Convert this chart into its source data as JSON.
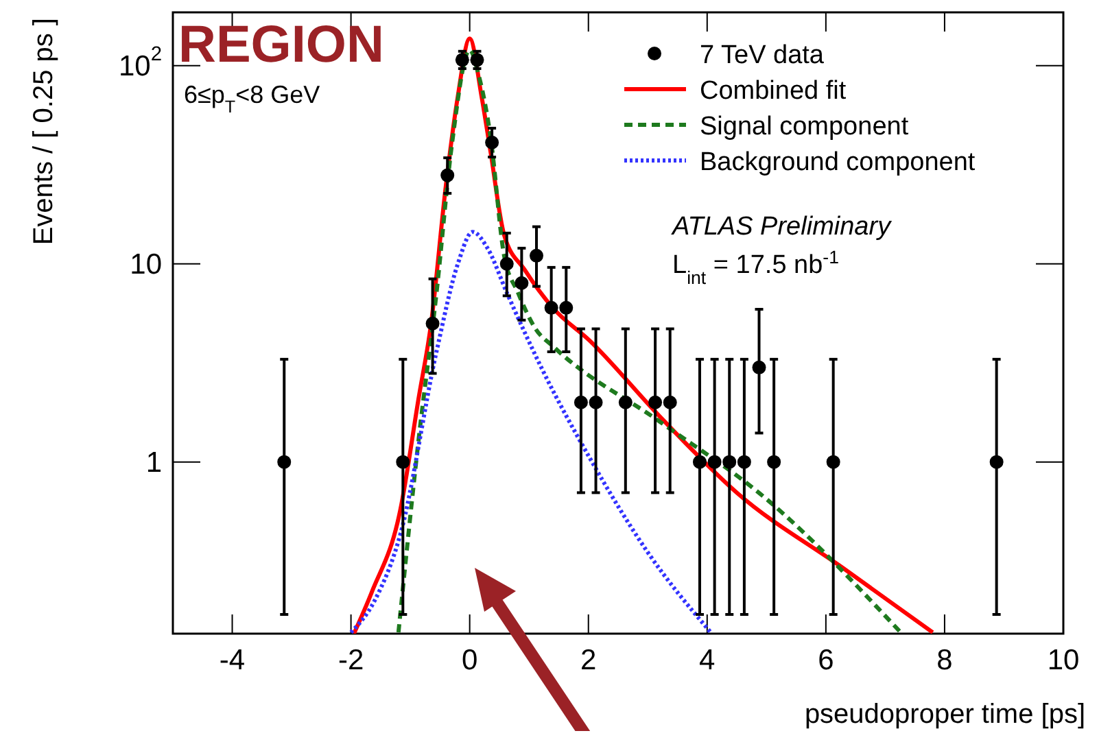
{
  "chart_data": {
    "type": "scatter",
    "xlabel": "pseudoproper time [ps]",
    "ylabel": "Events / [ 0.25 ps ]",
    "log": "y",
    "xlim": [
      -5,
      10
    ],
    "xticks": [
      -4,
      -2,
      0,
      2,
      4,
      6,
      8,
      10
    ],
    "ylim": [
      0.136,
      186
    ],
    "yticks": [
      1,
      10,
      {
        "value": 100,
        "label": "10$^{2}$"
      }
    ],
    "legend": "top right",
    "grid": false,
    "annotations": [
      "REGION",
      "6≤p$_{T}$<8 GeV",
      "ATLAS Preliminary",
      "L$_{int}$ = 17.5 nb$^{-1}$"
    ],
    "series": [
      {
        "name": "7 TeV data",
        "marker": "circle",
        "color": "#000000",
        "x": [
          -3.125,
          -1.125,
          -0.625,
          -0.375,
          -0.125,
          0.125,
          0.375,
          0.625,
          0.875,
          1.125,
          1.375,
          1.625,
          1.875,
          2.125,
          2.625,
          3.125,
          3.375,
          3.875,
          4.125,
          4.375,
          4.625,
          4.875,
          5.125,
          6.125,
          8.875
        ],
        "values": [
          1,
          1,
          5,
          28,
          107,
          107,
          41,
          10,
          8,
          11,
          6,
          6,
          2,
          2,
          2,
          2,
          2,
          1,
          1,
          1,
          1,
          3,
          1,
          1,
          1
        ],
        "errors": [
          [
            0.17,
            3.3
          ],
          [
            0.17,
            3.3
          ],
          [
            2.8,
            8.4
          ],
          [
            22.7,
            34.3
          ],
          [
            96.7,
            118.3
          ],
          [
            96.7,
            118.3
          ],
          [
            34.6,
            48.4
          ],
          [
            6.9,
            14.3
          ],
          [
            5.2,
            12
          ],
          [
            7.7,
            15.4
          ],
          [
            3.6,
            9.6
          ],
          [
            3.6,
            9.6
          ],
          [
            0.7,
            4.7
          ],
          [
            0.7,
            4.7
          ],
          [
            0.7,
            4.7
          ],
          [
            0.7,
            4.7
          ],
          [
            0.7,
            4.7
          ],
          [
            0.17,
            3.3
          ],
          [
            0.17,
            3.3
          ],
          [
            0.17,
            3.3
          ],
          [
            0.17,
            3.3
          ],
          [
            1.4,
            5.9
          ],
          [
            0.17,
            3.3
          ],
          [
            0.17,
            3.3
          ],
          [
            0.17,
            3.3
          ]
        ]
      },
      {
        "name": "Combined fit",
        "type": "line",
        "line_style": "solid",
        "color": "#ff0000",
        "x": [
          -1.95,
          -1.65,
          -1.17,
          -0.86,
          -0.65,
          -0.4,
          -0.2,
          0,
          0.2,
          0.35,
          0.58,
          0.93,
          1.4,
          2.02,
          3.2,
          4.5,
          6.3,
          7.8
        ],
        "values": [
          0.136,
          0.22,
          0.57,
          2.1,
          5,
          25,
          70,
          137,
          70,
          37,
          14,
          9.3,
          6,
          4.1,
          1.7,
          0.7,
          0.29,
          0.138
        ]
      },
      {
        "name": "Signal component",
        "type": "line",
        "line_style": "dashed",
        "color": "#1e7a1e",
        "x": [
          -1.2,
          -0.86,
          -0.56,
          -0.3,
          0,
          0.15,
          0.35,
          0.58,
          0.81,
          1.11,
          1.42,
          3.2,
          5.0,
          7.26
        ],
        "values": [
          0.138,
          1.3,
          7.1,
          40,
          120,
          90,
          44,
          11,
          7.2,
          4.7,
          3.8,
          1.6,
          0.65,
          0.138
        ]
      },
      {
        "name": "Background component",
        "type": "line",
        "line_style": "dotted",
        "color": "#3333ff",
        "x": [
          -2.0,
          -1.6,
          -1.16,
          -0.56,
          -0.2,
          0.05,
          0.3,
          0.63,
          1.23,
          2.02,
          3.0,
          4.06
        ],
        "values": [
          0.138,
          0.2,
          0.44,
          3.6,
          10,
          14.5,
          12,
          7.1,
          2.9,
          1.05,
          0.35,
          0.138
        ]
      }
    ]
  }
}
